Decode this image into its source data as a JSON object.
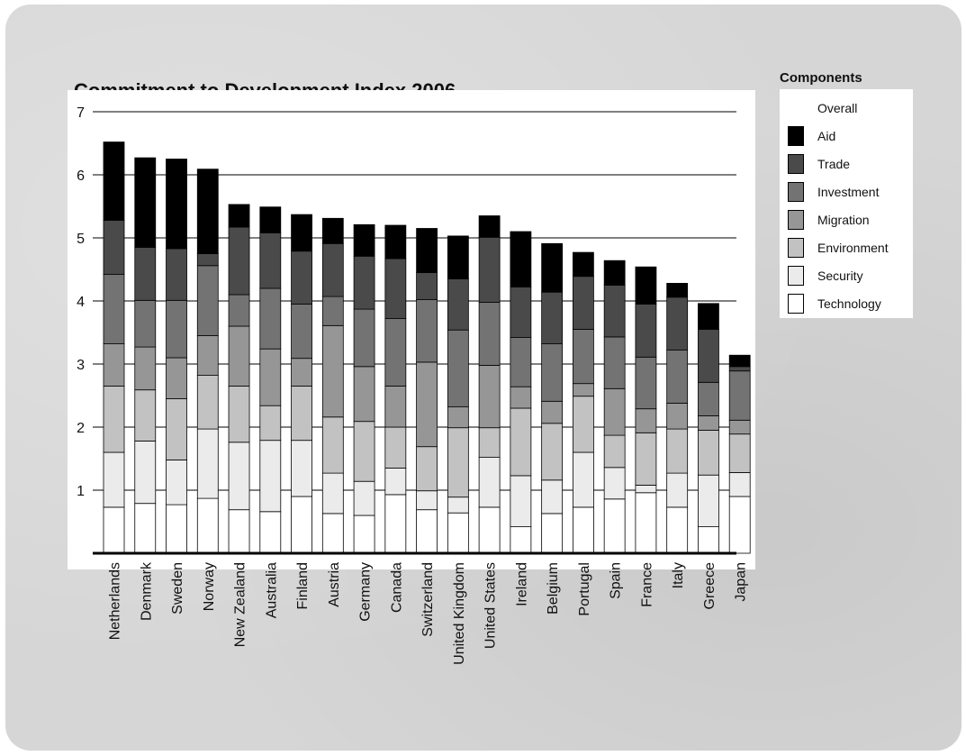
{
  "chart_data": {
    "type": "bar",
    "stacked": true,
    "title": "Commitment to Development Index 2006",
    "xlabel": "",
    "ylabel": "",
    "ylim": [
      0,
      7
    ],
    "y_ticks": [
      1,
      2,
      3,
      4,
      5,
      6,
      7
    ],
    "grid": true,
    "legend_title": "Components",
    "legend_position": "right",
    "legend_entries": [
      "Overall",
      "Aid",
      "Trade",
      "Investment",
      "Migration",
      "Environment",
      "Security",
      "Technology"
    ],
    "categories": [
      "Netherlands",
      "Denmark",
      "Sweden",
      "Norway",
      "New Zealand",
      "Australia",
      "Finland",
      "Austria",
      "Germany",
      "Canada",
      "Switzerland",
      "United Kingdom",
      "United States",
      "Ireland",
      "Belgium",
      "Portugal",
      "Spain",
      "France",
      "Italy",
      "Greece",
      "Japan"
    ],
    "overall": [
      6.52,
      6.27,
      6.25,
      6.09,
      5.53,
      5.49,
      5.37,
      5.31,
      5.21,
      5.18,
      5.15,
      5.03,
      4.95,
      4.95,
      4.91,
      4.77,
      4.74,
      4.54,
      4.28,
      3.96,
      3.14
    ],
    "series": [
      {
        "name": "Technology",
        "color": "#ffffff",
        "values": [
          0.73,
          0.79,
          0.77,
          0.87,
          0.69,
          0.66,
          0.9,
          0.63,
          0.6,
          0.93,
          0.69,
          0.64,
          0.73,
          0.42,
          0.63,
          0.73,
          0.86,
          0.96,
          0.73,
          0.42,
          0.9
        ]
      },
      {
        "name": "Security",
        "color": "#ebebeb",
        "values": [
          0.87,
          0.99,
          0.71,
          1.1,
          1.07,
          1.13,
          0.89,
          0.64,
          0.54,
          0.42,
          0.3,
          0.25,
          0.79,
          0.81,
          0.53,
          0.87,
          0.5,
          0.12,
          0.54,
          0.82,
          0.38
        ]
      },
      {
        "name": "Environment",
        "color": "#c2c2c2",
        "values": [
          1.05,
          0.81,
          0.97,
          0.85,
          0.89,
          0.55,
          0.86,
          0.89,
          0.95,
          0.65,
          0.7,
          1.1,
          0.47,
          1.07,
          0.9,
          0.89,
          0.51,
          0.83,
          0.7,
          0.71,
          0.61
        ]
      },
      {
        "name": "Migration",
        "color": "#969696",
        "values": [
          0.67,
          0.68,
          0.65,
          0.63,
          0.95,
          0.9,
          0.44,
          1.45,
          0.87,
          0.65,
          1.34,
          0.33,
          0.99,
          0.34,
          0.35,
          0.2,
          0.74,
          0.38,
          0.41,
          0.23,
          0.22
        ]
      },
      {
        "name": "Investment",
        "color": "#737373",
        "values": [
          1.1,
          0.74,
          0.91,
          1.11,
          0.5,
          0.96,
          0.86,
          0.46,
          0.91,
          1.07,
          0.99,
          1.22,
          1.0,
          0.78,
          0.91,
          0.86,
          0.82,
          0.82,
          0.84,
          0.53,
          0.78
        ]
      },
      {
        "name": "Trade",
        "color": "#4a4a4a",
        "values": [
          0.86,
          0.84,
          0.82,
          0.19,
          1.07,
          0.88,
          0.84,
          0.84,
          0.84,
          0.95,
          0.43,
          0.81,
          1.03,
          0.8,
          0.82,
          0.84,
          0.82,
          0.84,
          0.84,
          0.84,
          0.07
        ]
      },
      {
        "name": "Aid",
        "color": "#000000",
        "values": [
          1.24,
          1.42,
          1.42,
          1.34,
          0.36,
          0.41,
          0.58,
          0.4,
          0.5,
          0.53,
          0.7,
          0.68,
          0.34,
          0.88,
          0.77,
          0.38,
          0.39,
          0.59,
          0.22,
          0.41,
          0.18
        ]
      }
    ]
  }
}
